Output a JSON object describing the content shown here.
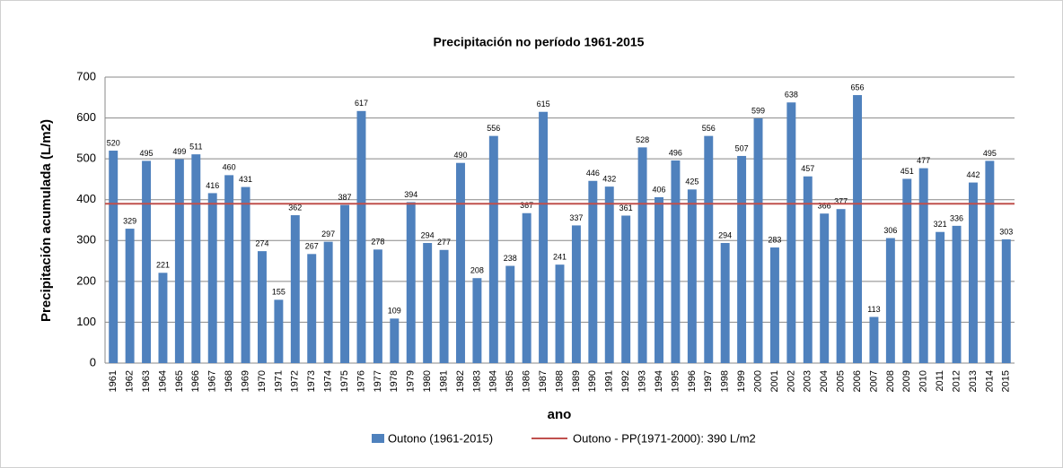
{
  "chart_data": {
    "type": "bar",
    "title": "Precipitación  no período 1961-2015",
    "x_label": "ano",
    "y_label": "Precipitación  acumulada  (L/m2)",
    "categories": [
      "1961",
      "1962",
      "1963",
      "1964",
      "1965",
      "1966",
      "1967",
      "1968",
      "1969",
      "1970",
      "1971",
      "1972",
      "1973",
      "1974",
      "1975",
      "1976",
      "1977",
      "1978",
      "1979",
      "1980",
      "1981",
      "1982",
      "1983",
      "1984",
      "1985",
      "1986",
      "1987",
      "1988",
      "1989",
      "1990",
      "1991",
      "1992",
      "1993",
      "1994",
      "1995",
      "1996",
      "1997",
      "1998",
      "1999",
      "2000",
      "2001",
      "2002",
      "2003",
      "2004",
      "2005",
      "2006",
      "2007",
      "2008",
      "2009",
      "2010",
      "2011",
      "2012",
      "2013",
      "2014",
      "2015"
    ],
    "series": [
      {
        "name": "Outono (1961-2015)",
        "color": "#4f81bd",
        "values": [
          520,
          329,
          495,
          221,
          499,
          511,
          416,
          460,
          431,
          274,
          155,
          362,
          267,
          297,
          387,
          617,
          278,
          109,
          394,
          294,
          277,
          490,
          208,
          556,
          238,
          367,
          615,
          241,
          337,
          446,
          432,
          361,
          528,
          406,
          496,
          425,
          556,
          294,
          507,
          599,
          283,
          638,
          457,
          366,
          377,
          656,
          113,
          306,
          451,
          477,
          321,
          336,
          442,
          495,
          303
        ]
      }
    ],
    "reference_line": {
      "name": "Outono - PP(1971-2000): 390 L/m2",
      "value": 390,
      "color": "#c0504d"
    },
    "ylim": [
      0,
      700
    ],
    "yticks": [
      0,
      100,
      200,
      300,
      400,
      500,
      600,
      700
    ],
    "grid": true
  }
}
